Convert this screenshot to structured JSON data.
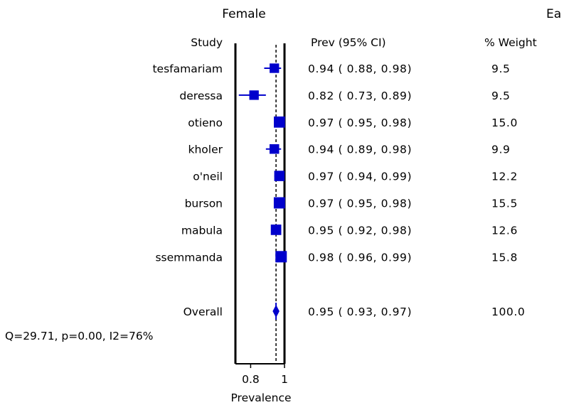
{
  "chart_data": {
    "type": "forest",
    "title": "Female",
    "clipped_title": "Ea",
    "columns": {
      "study": "Study",
      "estimate": "Prev (95% CI)",
      "weight": "% Weight"
    },
    "xlabel": "Prevalence",
    "xticks": [
      "0.8",
      "1"
    ],
    "xlim": [
      0.71,
      1.0
    ],
    "reference_line": 0.95,
    "studies": [
      {
        "study": "tesfamariam",
        "prev": 0.94,
        "lo": 0.88,
        "hi": 0.98,
        "ci_text": "0.94 ( 0.88, 0.98)",
        "weight": 9.5,
        "weight_text": "9.5"
      },
      {
        "study": "deressa",
        "prev": 0.82,
        "lo": 0.73,
        "hi": 0.89,
        "ci_text": "0.82 ( 0.73, 0.89)",
        "weight": 9.5,
        "weight_text": "9.5"
      },
      {
        "study": "otieno",
        "prev": 0.97,
        "lo": 0.95,
        "hi": 0.98,
        "ci_text": "0.97 ( 0.95, 0.98)",
        "weight": 15.0,
        "weight_text": "15.0"
      },
      {
        "study": "kholer",
        "prev": 0.94,
        "lo": 0.89,
        "hi": 0.98,
        "ci_text": "0.94 ( 0.89, 0.98)",
        "weight": 9.9,
        "weight_text": "9.9"
      },
      {
        "study": "o'neil",
        "prev": 0.97,
        "lo": 0.94,
        "hi": 0.99,
        "ci_text": "0.97 ( 0.94, 0.99)",
        "weight": 12.2,
        "weight_text": "12.2"
      },
      {
        "study": "burson",
        "prev": 0.97,
        "lo": 0.95,
        "hi": 0.98,
        "ci_text": "0.97 ( 0.95, 0.98)",
        "weight": 15.5,
        "weight_text": "15.5"
      },
      {
        "study": "mabula",
        "prev": 0.95,
        "lo": 0.92,
        "hi": 0.98,
        "ci_text": "0.95 ( 0.92, 0.98)",
        "weight": 12.6,
        "weight_text": "12.6"
      },
      {
        "study": "ssemmanda",
        "prev": 0.98,
        "lo": 0.96,
        "hi": 0.99,
        "ci_text": "0.98 ( 0.96, 0.99)",
        "weight": 15.8,
        "weight_text": "15.8"
      }
    ],
    "overall": {
      "label": "Overall",
      "prev": 0.95,
      "lo": 0.93,
      "hi": 0.97,
      "ci_text": "0.95 ( 0.93, 0.97)",
      "weight_text": "100.0"
    },
    "heterogeneity": "Q=29.71, p=0.00, I2=76%",
    "colors": {
      "marker": "#0000cc",
      "axis": "#000000",
      "text": "#000000",
      "background": "#ffffff"
    }
  }
}
